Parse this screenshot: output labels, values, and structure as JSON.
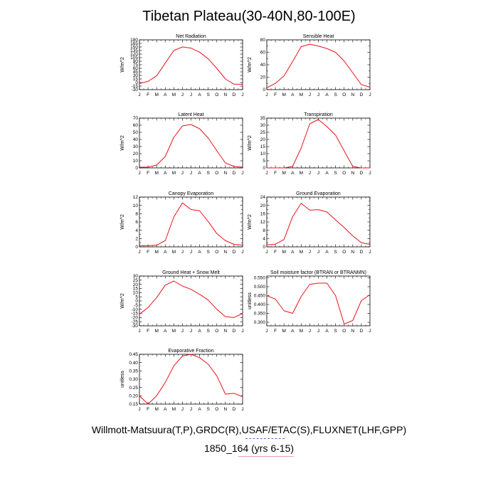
{
  "title": "Tibetan Plateau(30-40N,80-100E)",
  "footer_line1": "Willmott-Matsuura(T,P),GRDC(R),USAF/ETAC(S),FLUXNET(LHF,GPP)",
  "footer_line2": "1850_164 (yrs 6-15)",
  "line_color": "#e8141c",
  "chart_data": [
    {
      "type": "line",
      "title": "Net Radiation",
      "ylabel": "W/m^2",
      "ylim": [
        -30,
        180
      ],
      "yticks": [
        -30,
        -15,
        0,
        15,
        30,
        45,
        60,
        75,
        90,
        105,
        120,
        135,
        150,
        165,
        180
      ],
      "yticklabels": [
        "-30",
        "-15",
        "0",
        "15",
        "30",
        "45",
        "60",
        "75",
        "90",
        "105",
        "120",
        "135",
        "150",
        "165",
        "180"
      ],
      "categories": [
        "J",
        "F",
        "M",
        "A",
        "M",
        "J",
        "J",
        "A",
        "S",
        "O",
        "N",
        "D",
        "J"
      ],
      "values": [
        -4,
        5,
        28,
        82,
        135,
        150,
        145,
        128,
        100,
        60,
        15,
        -7,
        -7
      ]
    },
    {
      "type": "line",
      "title": "Sensible Heat",
      "ylabel": "W/m^2",
      "ylim": [
        0,
        80
      ],
      "yticks": [
        0,
        10,
        20,
        30,
        40,
        50,
        60,
        70,
        80
      ],
      "yticklabels": [
        "0",
        "",
        "20",
        "",
        "40",
        "",
        "60",
        "",
        "80"
      ],
      "categories": [
        "J",
        "F",
        "M",
        "A",
        "M",
        "J",
        "J",
        "A",
        "S",
        "O",
        "N",
        "D",
        "J"
      ],
      "values": [
        3,
        10,
        22,
        45,
        69,
        73,
        70,
        66,
        60,
        46,
        27,
        8,
        4
      ]
    },
    {
      "type": "line",
      "title": "Latent Heat",
      "ylabel": "W/m^2",
      "ylim": [
        0,
        70
      ],
      "yticks": [
        0,
        10,
        20,
        30,
        40,
        50,
        60,
        70
      ],
      "yticklabels": [
        "0",
        "10",
        "20",
        "30",
        "40",
        "50",
        "60",
        "70"
      ],
      "categories": [
        "J",
        "F",
        "M",
        "A",
        "M",
        "J",
        "J",
        "A",
        "S",
        "O",
        "N",
        "D",
        "J"
      ],
      "values": [
        1,
        1,
        4,
        16,
        43,
        59,
        61,
        55,
        42,
        24,
        7,
        2,
        1
      ]
    },
    {
      "type": "line",
      "title": "Transpiration",
      "ylabel": "W/m^2",
      "ylim": [
        0,
        35
      ],
      "yticks": [
        0,
        5,
        10,
        15,
        20,
        25,
        30,
        35
      ],
      "yticklabels": [
        "0",
        "5",
        "10",
        "15",
        "20",
        "25",
        "30",
        "35"
      ],
      "categories": [
        "J",
        "F",
        "M",
        "A",
        "M",
        "J",
        "J",
        "A",
        "S",
        "O",
        "N",
        "D",
        "J"
      ],
      "values": [
        0,
        0,
        0,
        1,
        14,
        31,
        34,
        29,
        23,
        12,
        1,
        0,
        0
      ]
    },
    {
      "type": "line",
      "title": "Canopy Evaporation",
      "ylabel": "W/m^2",
      "ylim": [
        0,
        12
      ],
      "yticks": [
        0,
        1,
        2,
        3,
        4,
        5,
        6,
        7,
        8,
        9,
        10,
        11,
        12
      ],
      "yticklabels": [
        "0",
        "",
        "2",
        "",
        "4",
        "",
        "6",
        "",
        "8",
        "",
        "10",
        "",
        "12"
      ],
      "categories": [
        "J",
        "F",
        "M",
        "A",
        "M",
        "J",
        "J",
        "A",
        "S",
        "O",
        "N",
        "D",
        "J"
      ],
      "values": [
        0.3,
        0.3,
        0.4,
        1.5,
        7.2,
        10.6,
        9,
        8.7,
        6.1,
        3.2,
        1.5,
        0.6,
        0.4
      ]
    },
    {
      "type": "line",
      "title": "Ground Evaporation",
      "ylabel": "W/m^2",
      "ylim": [
        0,
        24
      ],
      "yticks": [
        0,
        2,
        4,
        6,
        8,
        10,
        12,
        14,
        16,
        18,
        20,
        22,
        24
      ],
      "yticklabels": [
        "0",
        "",
        "4",
        "",
        "8",
        "",
        "12",
        "",
        "16",
        "",
        "20",
        "",
        "24"
      ],
      "categories": [
        "J",
        "F",
        "M",
        "A",
        "M",
        "J",
        "J",
        "A",
        "S",
        "O",
        "N",
        "D",
        "J"
      ],
      "values": [
        1,
        1.3,
        3.5,
        14.5,
        21,
        17.7,
        17.9,
        16.8,
        13,
        9.3,
        5.3,
        2,
        1.2
      ]
    },
    {
      "type": "line",
      "title": "Ground Heat + Snow Melt",
      "ylabel": "W/m^2",
      "ylim": [
        -30,
        30
      ],
      "yticks": [
        -30,
        -25,
        -20,
        -15,
        -10,
        -5,
        0,
        5,
        10,
        15,
        20,
        25,
        30
      ],
      "yticklabels": [
        "-30",
        "-25",
        "-20",
        "-15",
        "-10",
        "-5",
        "0",
        "5",
        "10",
        "15",
        "20",
        "25",
        "30"
      ],
      "categories": [
        "J",
        "F",
        "M",
        "A",
        "M",
        "J",
        "J",
        "A",
        "S",
        "O",
        "N",
        "D",
        "J"
      ],
      "values": [
        -16,
        -8,
        4,
        19,
        24,
        18,
        14,
        8,
        1,
        -10,
        -19,
        -20,
        -15
      ]
    },
    {
      "type": "line",
      "title": "Soil moisture factor (BTRAN or BTRANMN)",
      "ylabel": "unitless",
      "ylim": [
        0.28,
        0.56
      ],
      "yticks": [
        0.3,
        0.35,
        0.4,
        0.45,
        0.5,
        0.55
      ],
      "yticklabels": [
        "0.300",
        "0.350",
        "0.400",
        "0.450",
        "0.500",
        "0.550"
      ],
      "categories": [
        "J",
        "F",
        "M",
        "A",
        "M",
        "J",
        "J",
        "A",
        "S",
        "O",
        "N",
        "D",
        "J"
      ],
      "values": [
        0.45,
        0.43,
        0.365,
        0.35,
        0.445,
        0.513,
        0.52,
        0.52,
        0.45,
        0.29,
        0.31,
        0.422,
        0.455
      ]
    },
    {
      "type": "line",
      "title": "Evaporative Fraction",
      "ylabel": "unitless",
      "ylim": [
        0.15,
        0.45
      ],
      "yticks": [
        0.15,
        0.2,
        0.25,
        0.3,
        0.35,
        0.4,
        0.45
      ],
      "yticklabels": [
        "0.15",
        "0.20",
        "0.25",
        "0.30",
        "0.35",
        "0.40",
        "0.45"
      ],
      "categories": [
        "J",
        "F",
        "M",
        "A",
        "M",
        "J",
        "J",
        "A",
        "S",
        "O",
        "N",
        "D",
        "J"
      ],
      "values": [
        0.2,
        0.15,
        0.2,
        0.28,
        0.38,
        0.44,
        0.45,
        0.43,
        0.39,
        0.32,
        0.21,
        0.215,
        0.195
      ]
    }
  ]
}
